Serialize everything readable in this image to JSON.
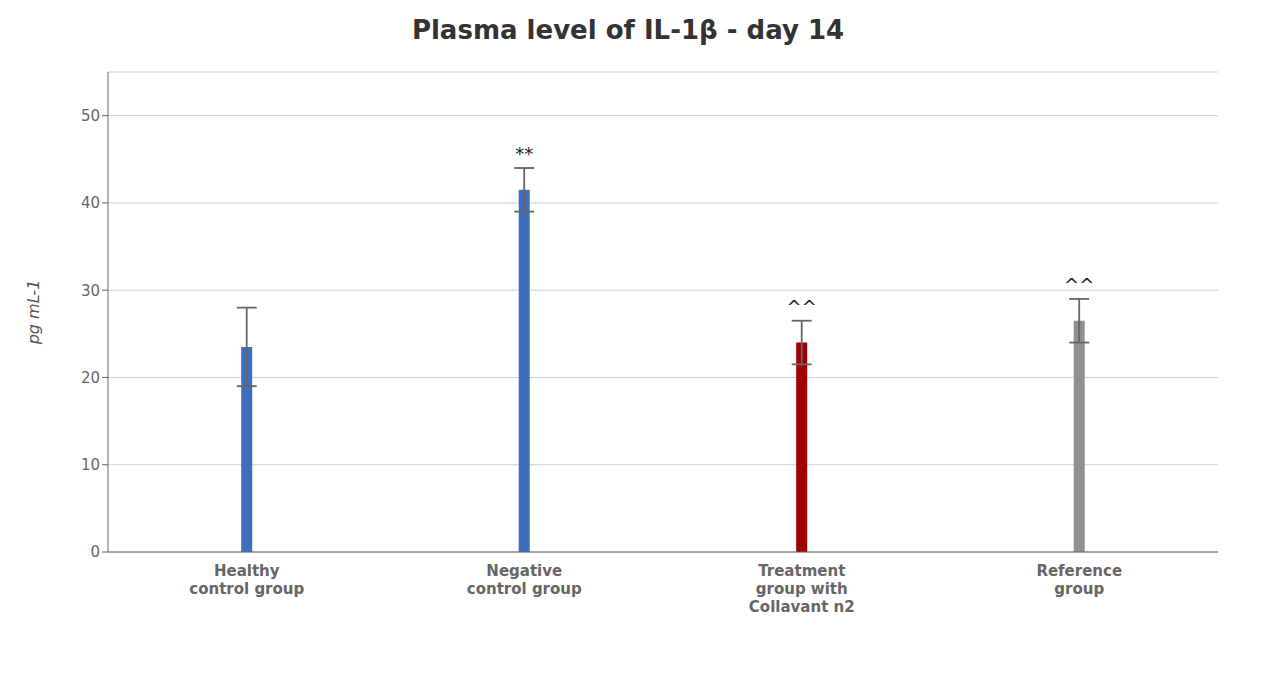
{
  "chart_data": {
    "type": "bar",
    "title": "Plasma level of IL-1β - day 14",
    "ylabel": "pg mL-1",
    "categories": [
      "Healthy\ncontrol group",
      "Negative\ncontrol group",
      "Treatment\ngroup with\nCollavant n2",
      "Reference\ngroup"
    ],
    "values": [
      23.5,
      41.5,
      24.0,
      26.5
    ],
    "errors": [
      4.5,
      2.5,
      2.5,
      2.5
    ],
    "colors": [
      "#3d6ebf",
      "#3d6ebf",
      "#a00000",
      "#909090"
    ],
    "annotations": [
      null,
      "**",
      "^^",
      "^^"
    ],
    "ylim": [
      0,
      55
    ],
    "yticks": [
      0,
      10,
      20,
      30,
      40,
      50
    ],
    "grid": true
  }
}
